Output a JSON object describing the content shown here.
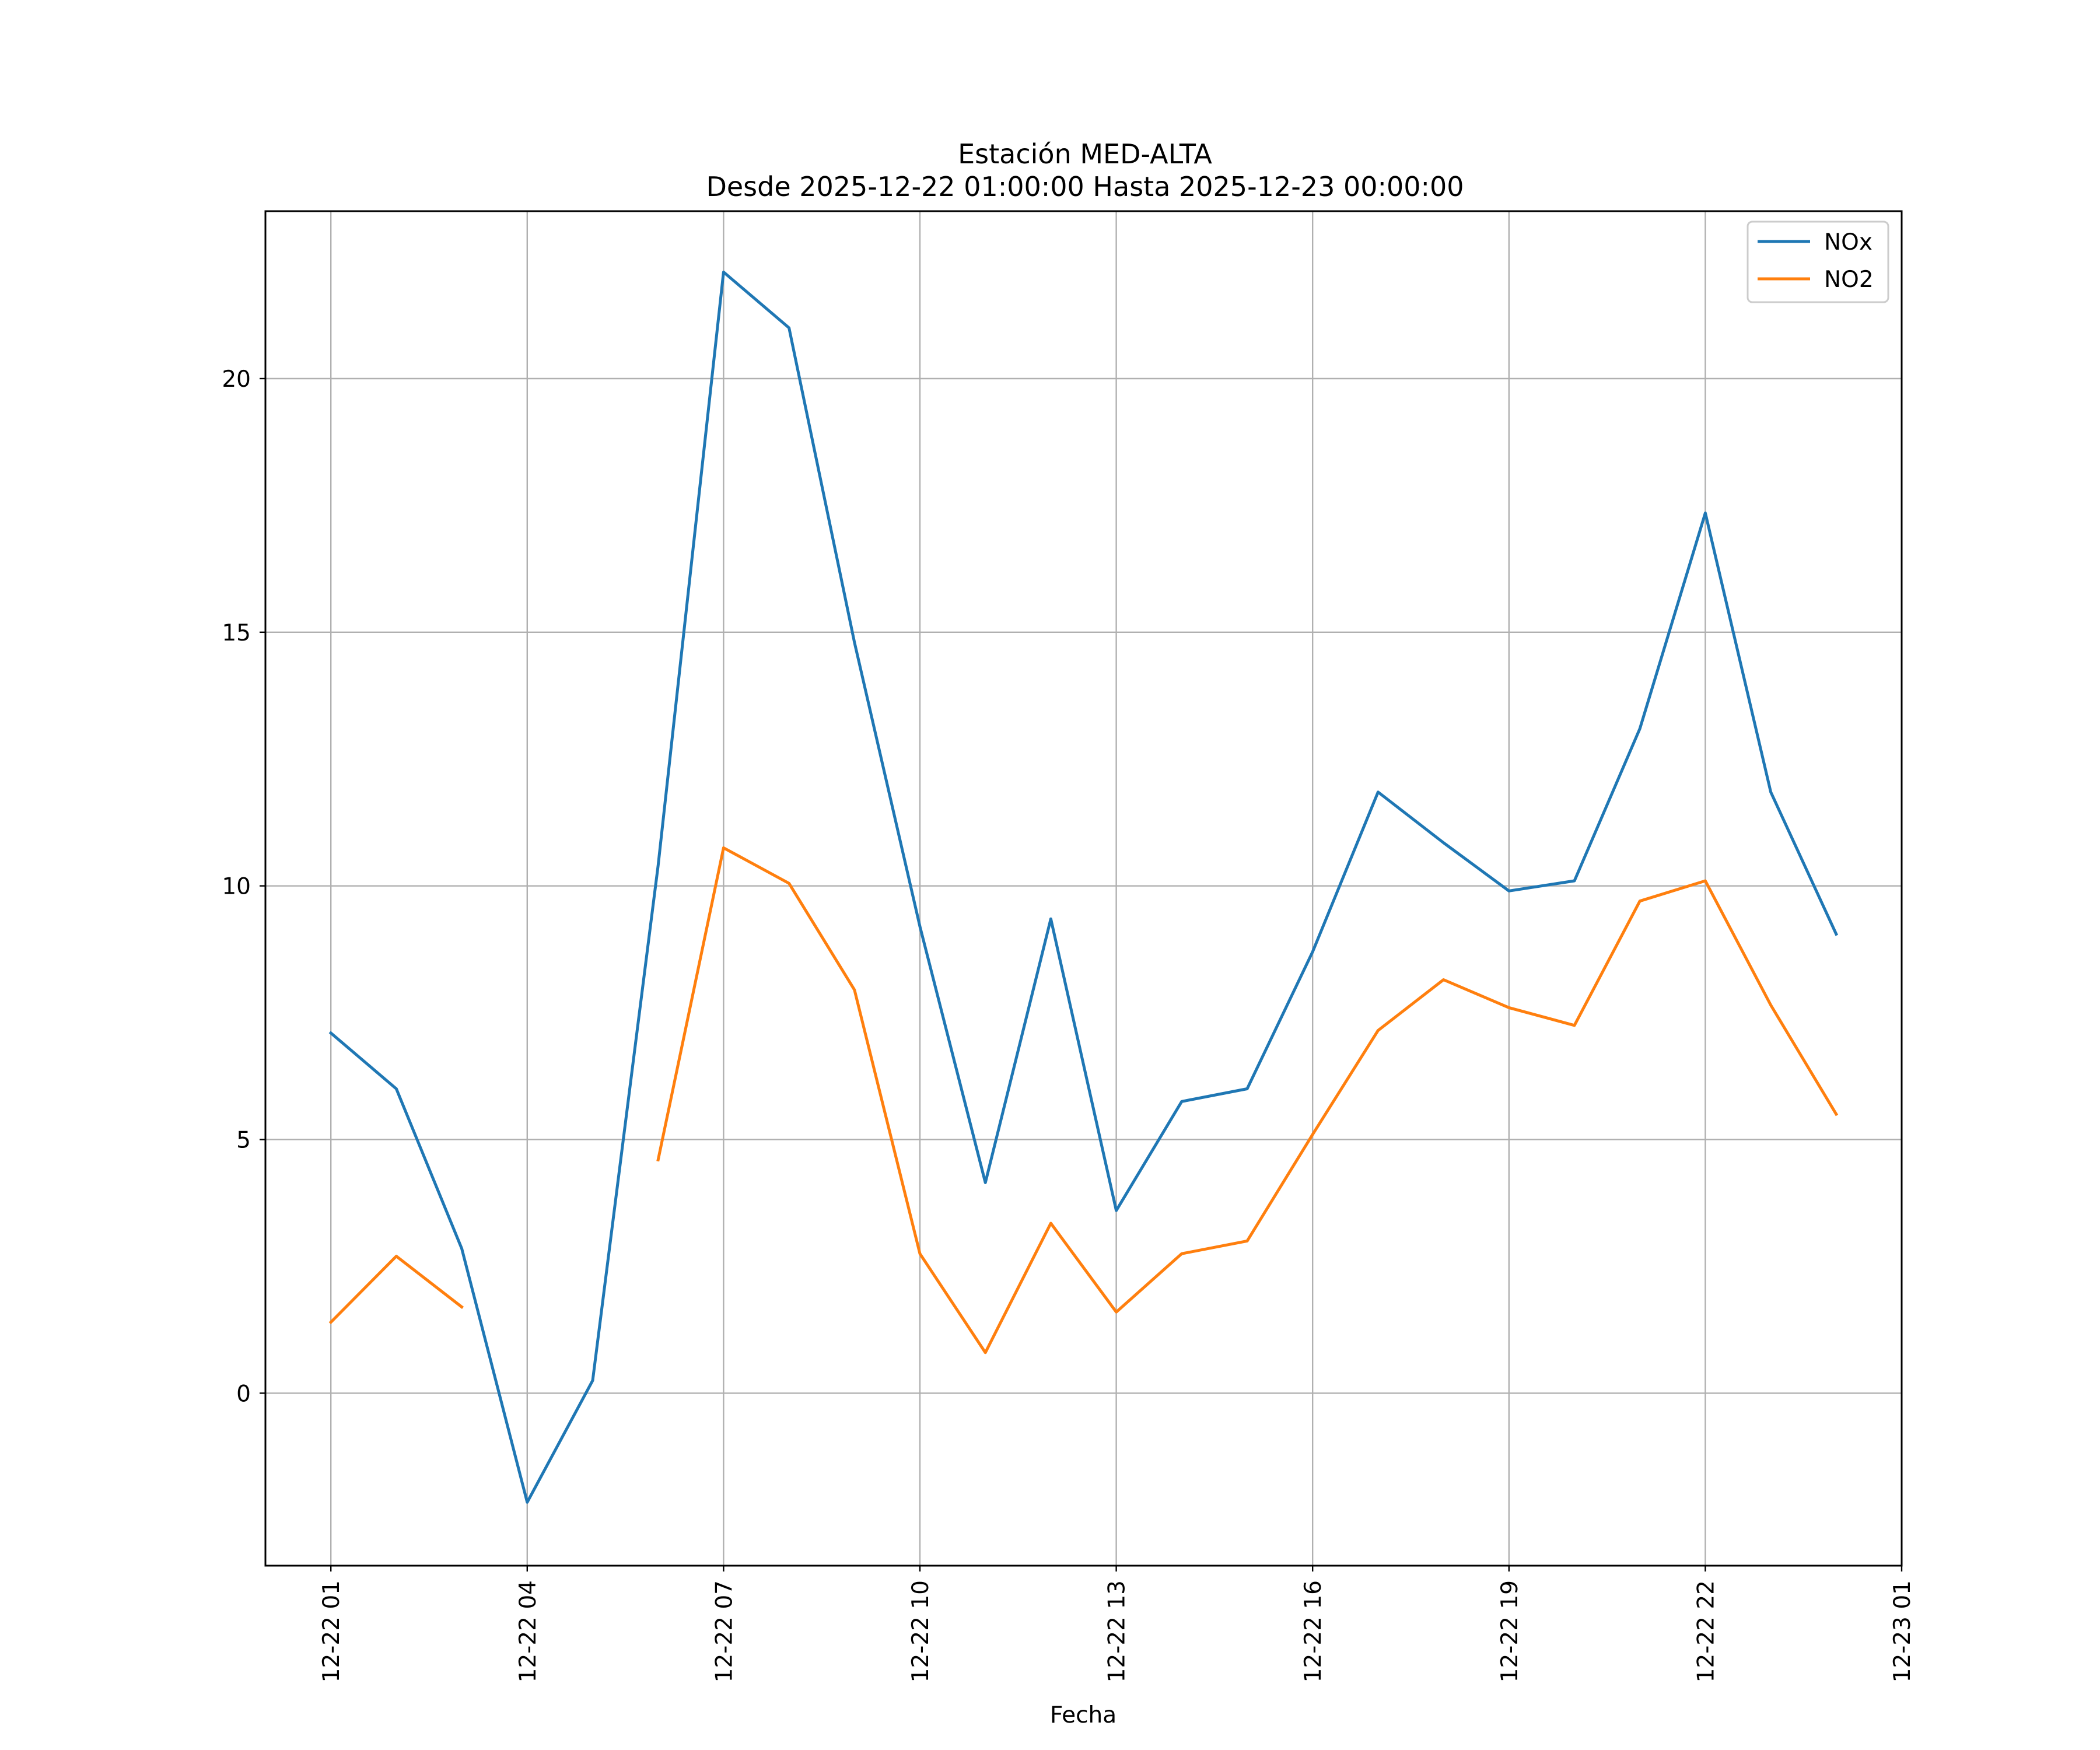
{
  "chart_data": {
    "type": "line",
    "title": "Estación MED-ALTA",
    "subtitle": "Desde 2025-12-22 01:00:00 Hasta 2025-12-23 00:00:00",
    "xlabel": "Fecha",
    "ylabel": "",
    "x": [
      "2025-12-22 01:00",
      "2025-12-22 02:00",
      "2025-12-22 03:00",
      "2025-12-22 04:00",
      "2025-12-22 05:00",
      "2025-12-22 06:00",
      "2025-12-22 07:00",
      "2025-12-22 08:00",
      "2025-12-22 09:00",
      "2025-12-22 10:00",
      "2025-12-22 11:00",
      "2025-12-22 12:00",
      "2025-12-22 13:00",
      "2025-12-22 14:00",
      "2025-12-22 15:00",
      "2025-12-22 16:00",
      "2025-12-22 17:00",
      "2025-12-22 18:00",
      "2025-12-22 19:00",
      "2025-12-22 20:00",
      "2025-12-22 21:00",
      "2025-12-22 22:00",
      "2025-12-22 23:00",
      "2025-12-23 00:00"
    ],
    "xticks": [
      {
        "x": "2025-12-22 01:00",
        "label": "12-22 01"
      },
      {
        "x": "2025-12-22 04:00",
        "label": "12-22 04"
      },
      {
        "x": "2025-12-22 07:00",
        "label": "12-22 07"
      },
      {
        "x": "2025-12-22 10:00",
        "label": "12-22 10"
      },
      {
        "x": "2025-12-22 13:00",
        "label": "12-22 13"
      },
      {
        "x": "2025-12-22 16:00",
        "label": "12-22 16"
      },
      {
        "x": "2025-12-22 19:00",
        "label": "12-22 19"
      },
      {
        "x": "2025-12-22 22:00",
        "label": "12-22 22"
      },
      {
        "x": "2025-12-23 01:00",
        "label": "12-23 01"
      }
    ],
    "yticks": [
      0,
      5,
      10,
      15,
      20
    ],
    "xlim": [
      "2025-12-22 00:00",
      "2025-12-23 01:00"
    ],
    "ylim": [
      -3.4,
      23.3
    ],
    "grid": true,
    "legend_position": "top-right",
    "series": [
      {
        "name": "NOx",
        "color": "#1f77b4",
        "values": [
          7.1,
          6.0,
          2.85,
          -2.15,
          0.25,
          10.4,
          22.1,
          21.0,
          14.8,
          9.2,
          4.15,
          9.35,
          3.6,
          5.75,
          6.0,
          8.7,
          11.85,
          10.85,
          9.9,
          10.1,
          13.1,
          17.35,
          11.85,
          9.05
        ]
      },
      {
        "name": "NO2",
        "color": "#ff7f0e",
        "values": [
          1.4,
          2.7,
          1.7,
          null,
          null,
          4.6,
          10.75,
          10.05,
          7.95,
          2.75,
          0.8,
          3.35,
          1.6,
          2.75,
          3.0,
          5.1,
          7.15,
          8.15,
          7.6,
          7.25,
          9.7,
          10.1,
          7.65,
          5.5
        ]
      }
    ]
  }
}
